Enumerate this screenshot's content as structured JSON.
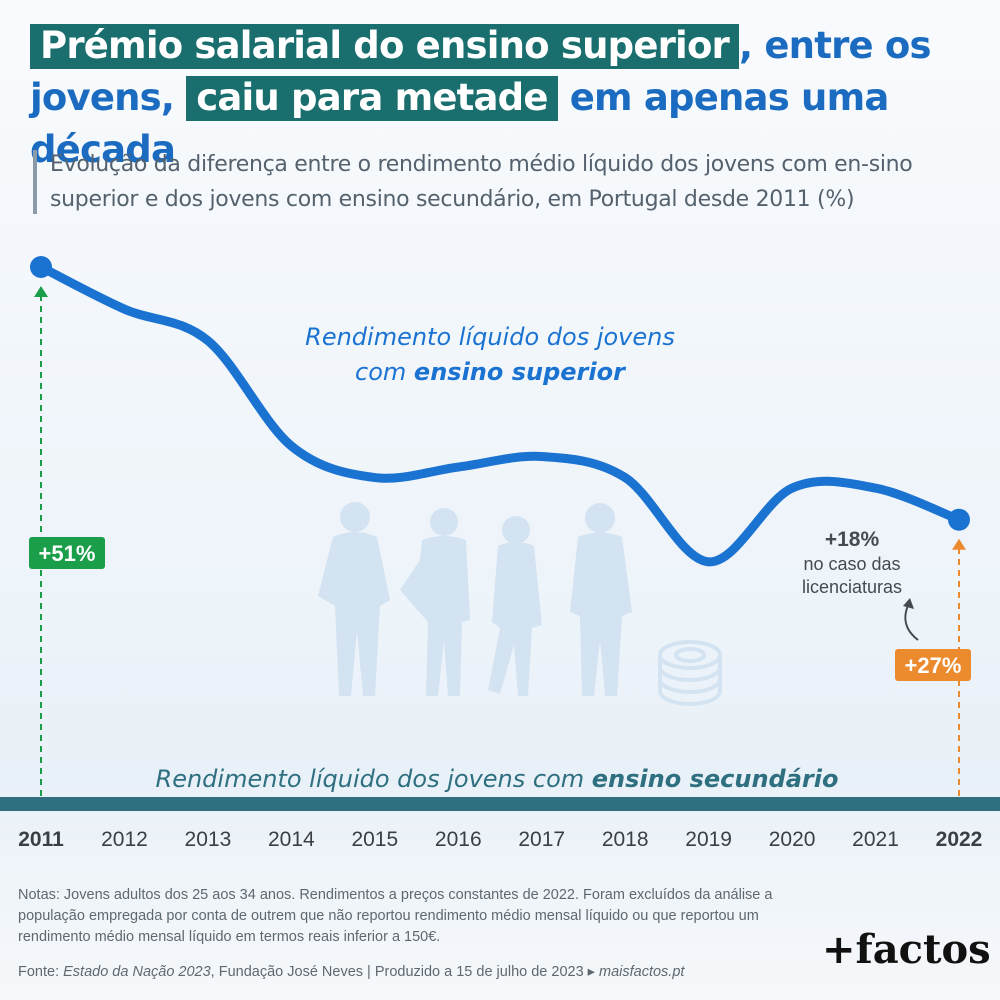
{
  "title": {
    "part1_highlight": "Prémio salarial do ensino superior",
    "part2": ", entre os jovens, ",
    "part3_highlight": "caiu para metade",
    "part4": " em apenas uma década"
  },
  "subtitle": "Evolução da diferença entre o rendimento médio líquido dos jovens com en-sino superior e dos jovens com ensino secundário, em Portugal desde 2011 (%)",
  "chart_data": {
    "type": "line",
    "x": [
      "2011",
      "2012",
      "2013",
      "2014",
      "2015",
      "2016",
      "2017",
      "2018",
      "2019",
      "2020",
      "2021",
      "2022"
    ],
    "series": [
      {
        "name": "Rendimento líquido dos jovens com ensino superior",
        "values": [
          51,
          47,
          44,
          34,
          31,
          32,
          33,
          31,
          23,
          30,
          30,
          27
        ]
      }
    ],
    "baseline": {
      "name": "Rendimento líquido dos jovens com ensino secundário",
      "value": 0
    },
    "ylim": [
      0,
      55
    ],
    "data_labels": {
      "start": "+51%",
      "end": "+27%"
    },
    "annotation": {
      "value": "+18%",
      "text_line1": "no caso das",
      "text_line2": "licenciaturas"
    },
    "upper_label": {
      "line1": "Rendimento líquido dos jovens",
      "line2_prefix": "com ",
      "line2_bold": "ensino superior"
    },
    "lower_label": {
      "prefix": "Rendimento líquido dos jovens com ",
      "bold": "ensino secundário"
    },
    "colors": {
      "line": "#1b73d1",
      "start": "#1a9e4a",
      "end": "#ec8b2e",
      "baseline": "#2e6f80",
      "secondary_text": "#2e6f80"
    }
  },
  "footer": {
    "notes": "Notas: Jovens adultos dos 25 aos 34 anos. Rendimentos a preços constantes de 2022. Foram excluídos da análise a população empregada por conta de outrem que não reportou rendimento médio mensal líquido ou que reportou um rendimento médio mensal líquido em termos reais inferior a 150€.",
    "source_prefix": "Fonte: ",
    "source_italic": "Estado da Nação 2023",
    "source_rest": ", Fundação José Neves  |  Produzido a 15 de julho de 2023 ▸ ",
    "source_site": "maisfactos.pt"
  },
  "logo": {
    "plus": "+",
    "text": "factos"
  },
  "icons": [
    "students-silhouette-icon",
    "coins-icon"
  ]
}
